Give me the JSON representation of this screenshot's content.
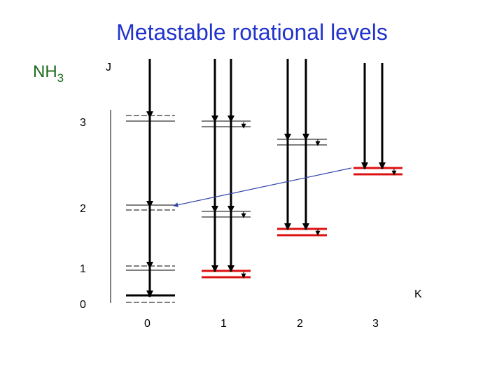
{
  "title": "Metastable rotational levels",
  "molecule": {
    "base": "NH",
    "subscript": "3"
  },
  "axes": {
    "j_label": "J",
    "k_label": "K"
  },
  "j_ticks": [
    "3",
    "2",
    "1",
    "0"
  ],
  "k_ticks": [
    "0",
    "1",
    "2",
    "3"
  ],
  "colors": {
    "title": "#2233cc",
    "molecule": "#1a6b1a",
    "metastable": "#dd1111",
    "transfer_arrow": "#3344aa",
    "line": "#000000"
  },
  "levels": [
    {
      "k": "0",
      "j": "3",
      "metastable": false
    },
    {
      "k": "0",
      "j": "2",
      "metastable": false
    },
    {
      "k": "0",
      "j": "1",
      "metastable": false
    },
    {
      "k": "0",
      "j": "0",
      "metastable": true
    },
    {
      "k": "1",
      "j": "3",
      "metastable": false
    },
    {
      "k": "1",
      "j": "2",
      "metastable": false
    },
    {
      "k": "1",
      "j": "1",
      "metastable": true
    },
    {
      "k": "2",
      "j": "3",
      "metastable": false
    },
    {
      "k": "2",
      "j": "2",
      "metastable": true
    },
    {
      "k": "3",
      "j": "3",
      "metastable": true
    }
  ],
  "transfer": {
    "from": "K=3, J=3",
    "to": "K=0, J=2"
  }
}
